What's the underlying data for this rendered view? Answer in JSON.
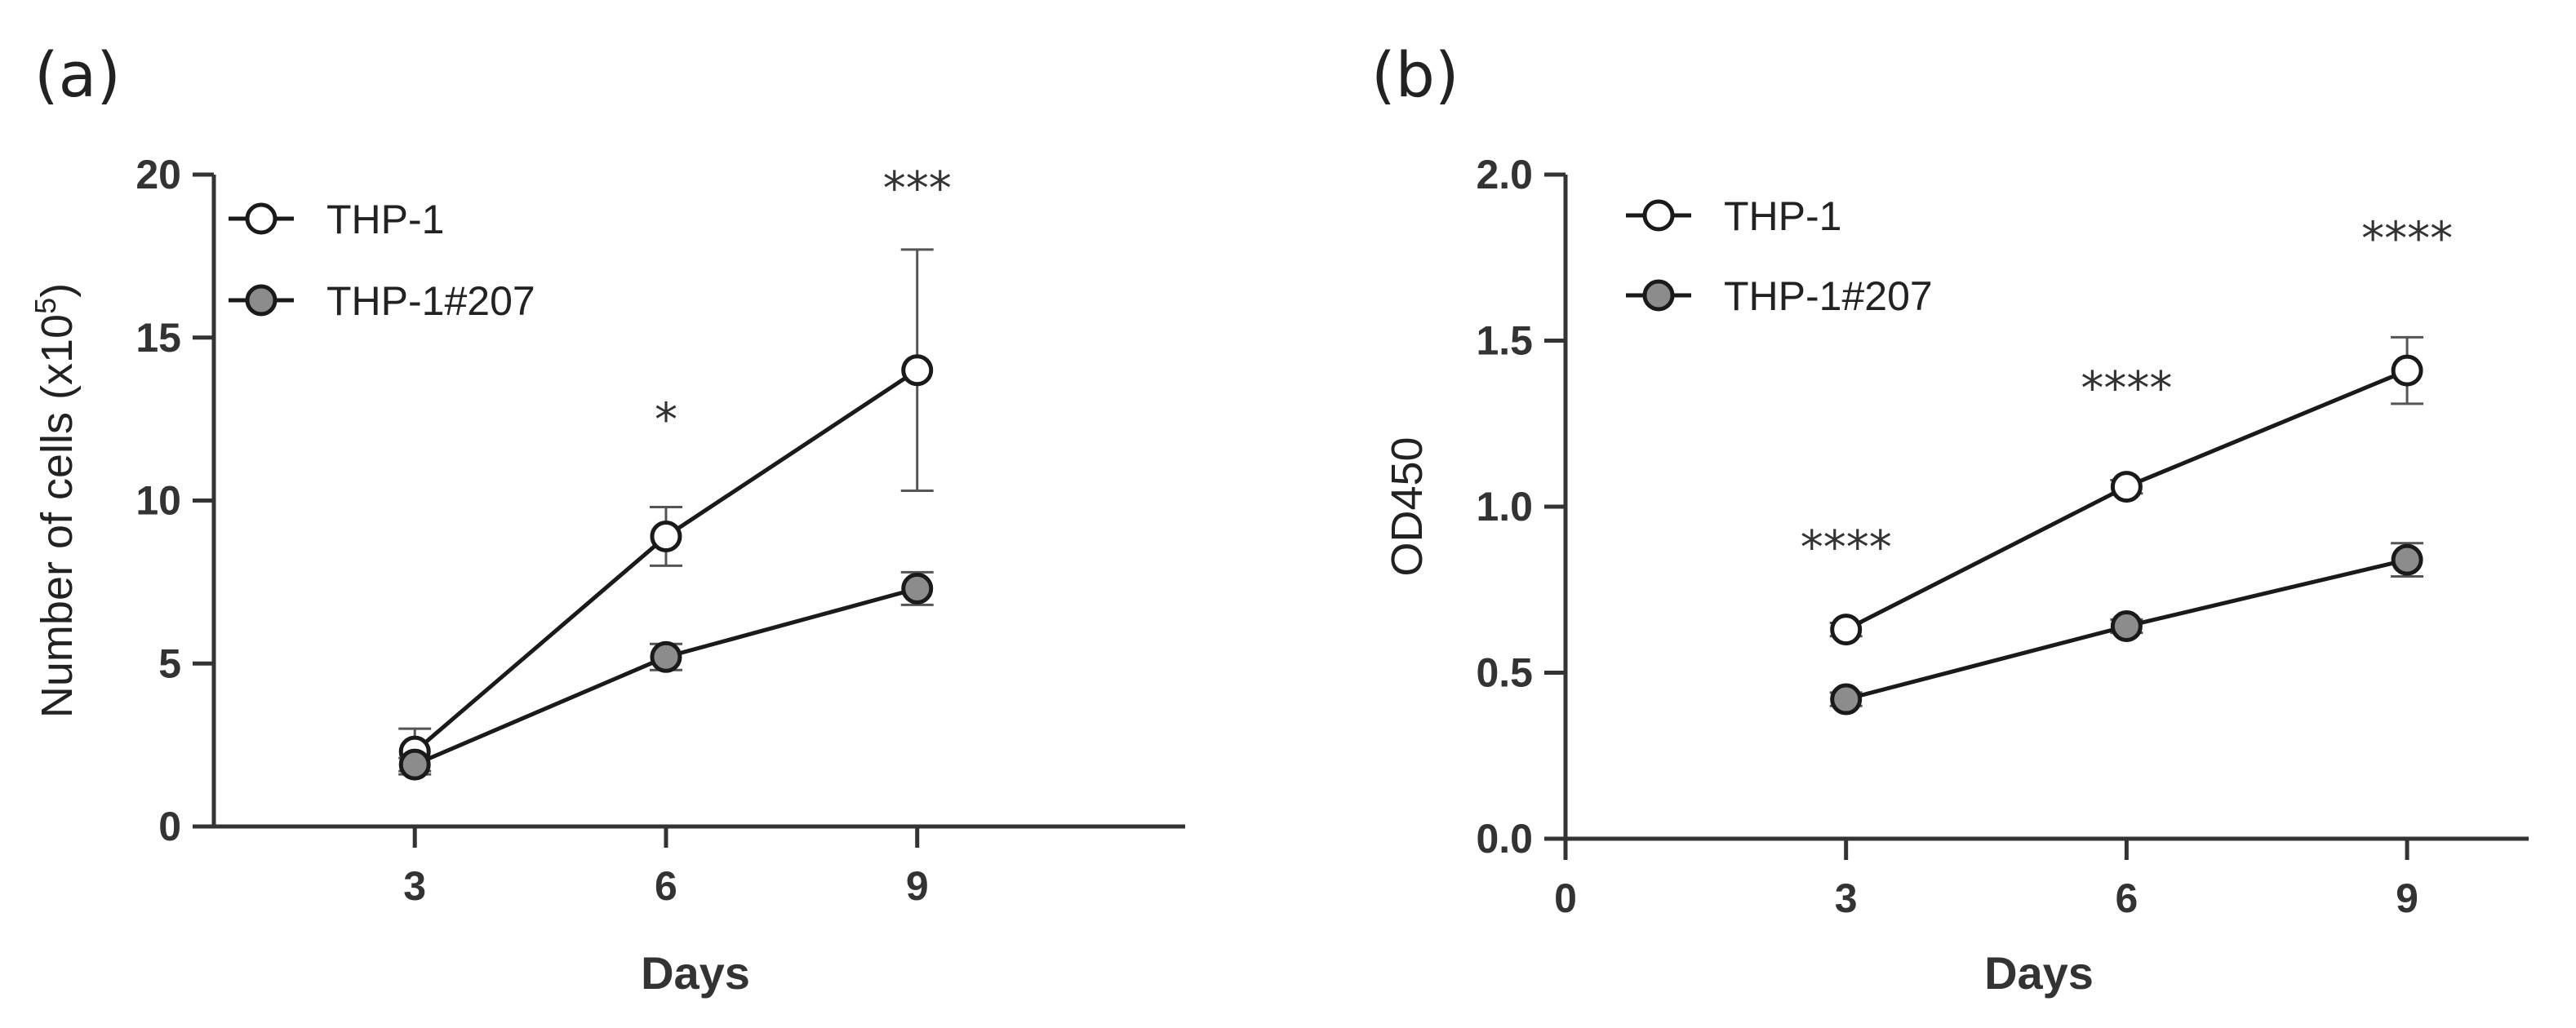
{
  "chart_data": [
    {
      "panel_label": "(a)",
      "type": "line",
      "xlabel": "Days",
      "ylabel": "Number of cells (x10",
      "ylabel_sup": "5",
      "ylabel_end": ")",
      "xlim": [
        0.6,
        12.2
      ],
      "ylim": [
        0,
        20
      ],
      "xticks": [
        3,
        6,
        9
      ],
      "yticks": [
        0,
        5,
        10,
        15,
        20
      ],
      "grid": false,
      "legend_position": "top-left",
      "series": [
        {
          "name": "THP-1",
          "marker": "open-circle",
          "fill": "#ffffff",
          "x": [
            3,
            6,
            9
          ],
          "y": [
            2.3,
            8.9,
            14.0
          ],
          "err": [
            0.7,
            0.9,
            3.7
          ]
        },
        {
          "name": "THP-1#207",
          "marker": "filled-circle",
          "fill": "#8c8c8c",
          "x": [
            3,
            6,
            9
          ],
          "y": [
            1.9,
            5.2,
            7.3
          ],
          "err": [
            0.2,
            0.4,
            0.5
          ]
        }
      ],
      "annotations": [
        {
          "x": 6,
          "y": 12.0,
          "text": "*"
        },
        {
          "x": 9,
          "y": 19.1,
          "text": "***"
        }
      ]
    },
    {
      "panel_label": "(b)",
      "type": "line",
      "xlabel": "Days",
      "ylabel": "OD450",
      "ylabel_sup": "",
      "ylabel_end": "",
      "xlim": [
        0,
        10.3
      ],
      "ylim": [
        0,
        2.0
      ],
      "xticks": [
        0,
        3,
        6,
        9
      ],
      "ytick_labels": [
        "0.0",
        "0.5",
        "1.0",
        "1.5",
        "2.0"
      ],
      "yticks": [
        0,
        0.5,
        1.0,
        1.5,
        2.0
      ],
      "grid": false,
      "legend_position": "top-left",
      "series": [
        {
          "name": "THP-1",
          "marker": "open-circle",
          "fill": "#ffffff",
          "x": [
            3,
            6,
            9
          ],
          "y": [
            0.63,
            1.06,
            1.41
          ],
          "err": [
            0.02,
            0.02,
            0.1
          ]
        },
        {
          "name": "THP-1#207",
          "marker": "filled-circle",
          "fill": "#8c8c8c",
          "x": [
            3,
            6,
            9
          ],
          "y": [
            0.42,
            0.64,
            0.84
          ],
          "err": [
            0.02,
            0.02,
            0.05
          ]
        }
      ],
      "annotations": [
        {
          "x": 3,
          "y": 0.83,
          "text": "****"
        },
        {
          "x": 6,
          "y": 1.31,
          "text": "****"
        },
        {
          "x": 9,
          "y": 1.76,
          "text": "****"
        }
      ]
    }
  ]
}
